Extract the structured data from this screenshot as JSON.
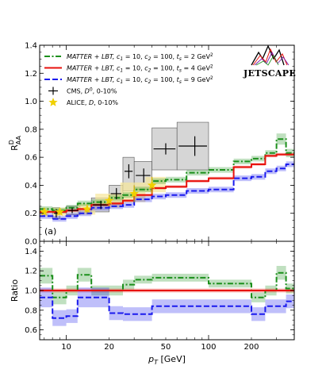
{
  "chart_data": [
    {
      "type": "line",
      "panel": "upper",
      "ylabel": "R^D_AA",
      "xscale": "log",
      "xlim": [
        6.5,
        400
      ],
      "ylim": [
        0.0,
        1.4
      ],
      "yticks": [
        0.0,
        0.2,
        0.4,
        0.6,
        0.8,
        1.0,
        1.2,
        1.4
      ],
      "ytick_labels": [
        "0.0",
        "0.2",
        "0.4",
        "0.6",
        "0.8",
        "1.0",
        "1.2",
        "1.4"
      ],
      "grid": false,
      "legend_position": "top-left",
      "annotation": "(a)",
      "logo_text": "JETSCAPE",
      "bin_edges": [
        6.5,
        8,
        10,
        12,
        15,
        20,
        25,
        30,
        40,
        50,
        70,
        100,
        150,
        200,
        250,
        300,
        350,
        400
      ],
      "series": [
        {
          "name": "MATTER + LBT, c1 = 10, c2 = 100, ts = 2 GeV^2",
          "label_parts": [
            "MATTER + LBT,",
            "c",
            "1",
            " = 10, ",
            "c",
            "2",
            " = 100, ",
            "t",
            "s",
            " = 2 GeV",
            "2"
          ],
          "color": "#1b8f1b",
          "style": "dashdot",
          "values": [
            0.23,
            0.22,
            0.24,
            0.27,
            0.28,
            0.31,
            0.33,
            0.37,
            0.43,
            0.44,
            0.49,
            0.51,
            0.57,
            0.59,
            0.63,
            0.73,
            0.63
          ],
          "band": [
            0.02,
            0.02,
            0.02,
            0.02,
            0.02,
            0.02,
            0.02,
            0.02,
            0.02,
            0.02,
            0.02,
            0.02,
            0.02,
            0.02,
            0.02,
            0.04,
            0.03
          ]
        },
        {
          "name": "MATTER + LBT, c1 = 10, c2 = 100, ts = 4 GeV^2",
          "label_parts": [
            "MATTER + LBT,",
            "c",
            "1",
            " = 10, ",
            "c",
            "2",
            " = 100, ",
            "t",
            "s",
            " = 4 GeV",
            "2"
          ],
          "color": "#e8120c",
          "style": "solid",
          "values": [
            0.21,
            0.21,
            0.22,
            0.23,
            0.26,
            0.27,
            0.29,
            0.33,
            0.38,
            0.39,
            0.43,
            0.45,
            0.53,
            0.55,
            0.61,
            0.62,
            0.62
          ],
          "band": [
            0.01,
            0.01,
            0.01,
            0.01,
            0.01,
            0.01,
            0.01,
            0.01,
            0.01,
            0.01,
            0.01,
            0.01,
            0.01,
            0.01,
            0.01,
            0.01,
            0.01
          ]
        },
        {
          "name": "MATTER + LBT, c1 = 10, c2 = 100, ts = 9 GeV^2",
          "label_parts": [
            "MATTER + LBT,",
            "c",
            "1",
            " = 10, ",
            "c",
            "2",
            " = 100, ",
            "t",
            "s",
            " = 9 GeV",
            "2"
          ],
          "color": "#1a1aee",
          "style": "dashed",
          "values": [
            0.18,
            0.16,
            0.18,
            0.2,
            0.24,
            0.25,
            0.26,
            0.3,
            0.32,
            0.33,
            0.36,
            0.37,
            0.45,
            0.46,
            0.5,
            0.52,
            0.55
          ],
          "band": [
            0.02,
            0.02,
            0.02,
            0.02,
            0.02,
            0.02,
            0.02,
            0.02,
            0.02,
            0.02,
            0.02,
            0.02,
            0.02,
            0.02,
            0.02,
            0.02,
            0.02
          ]
        }
      ],
      "experiments": [
        {
          "name": "CMS, D0, 0-10%",
          "label_parts": [
            "CMS, ",
            "D",
            "0",
            ", 0-10%"
          ],
          "color": "#000000",
          "box_color": "#c8c8c8",
          "marker": "cross",
          "points": [
            {
              "x": 8.5,
              "y": 0.2,
              "xlo": 8,
              "xhi": 9,
              "err": 0.03,
              "syslo": 0.16,
              "syshi": 0.24
            },
            {
              "x": 11,
              "y": 0.22,
              "xlo": 10,
              "xhi": 12.5,
              "err": 0.02,
              "syslo": 0.19,
              "syshi": 0.25
            },
            {
              "x": 17.5,
              "y": 0.26,
              "xlo": 15,
              "xhi": 20,
              "err": 0.03,
              "syslo": 0.21,
              "syshi": 0.31
            },
            {
              "x": 22.5,
              "y": 0.34,
              "xlo": 20,
              "xhi": 25,
              "err": 0.04,
              "syslo": 0.28,
              "syshi": 0.4
            },
            {
              "x": 27.5,
              "y": 0.5,
              "xlo": 25,
              "xhi": 30,
              "err": 0.05,
              "syslo": 0.36,
              "syshi": 0.6
            },
            {
              "x": 35,
              "y": 0.47,
              "xlo": 30,
              "xhi": 40,
              "err": 0.05,
              "syslo": 0.37,
              "syshi": 0.57
            },
            {
              "x": 50,
              "y": 0.66,
              "xlo": 40,
              "xhi": 60,
              "err": 0.04,
              "syslo": 0.51,
              "syshi": 0.81
            },
            {
              "x": 80,
              "y": 0.68,
              "xlo": 60,
              "xhi": 100,
              "err": 0.07,
              "syslo": 0.51,
              "syshi": 0.85
            }
          ]
        },
        {
          "name": "ALICE, D, 0-10%",
          "label_parts": [
            "ALICE, ",
            "D",
            ", 0-10%"
          ],
          "color": "#f0d000",
          "box_color": "#f7e79a",
          "marker": "star",
          "points": [
            {
              "x": 7.0,
              "y": 0.21,
              "xlo": 6.5,
              "xhi": 7.5,
              "err": 0.02,
              "syslo": 0.18,
              "syshi": 0.24
            },
            {
              "x": 9.0,
              "y": 0.21,
              "xlo": 8.0,
              "xhi": 10,
              "err": 0.02,
              "syslo": 0.18,
              "syshi": 0.24
            },
            {
              "x": 14,
              "y": 0.23,
              "xlo": 12,
              "xhi": 16,
              "err": 0.03,
              "syslo": 0.19,
              "syshi": 0.27
            },
            {
              "x": 20,
              "y": 0.29,
              "xlo": 16,
              "xhi": 24,
              "err": 0.04,
              "syslo": 0.24,
              "syshi": 0.34
            },
            {
              "x": 30,
              "y": 0.34,
              "xlo": 24,
              "xhi": 36,
              "err": 0.06,
              "syslo": 0.28,
              "syshi": 0.42
            },
            {
              "x": 40,
              "y": 0.4,
              "xlo": 36,
              "xhi": 50,
              "err": 0.06,
              "syslo": 0.35,
              "syshi": 0.46
            }
          ]
        }
      ]
    },
    {
      "type": "line",
      "panel": "lower",
      "ylabel": "Ratio",
      "xlabel": "pT [GeV]",
      "xlabel_parts": [
        "p",
        "T",
        " [GeV]"
      ],
      "xscale": "log",
      "xlim": [
        6.5,
        400
      ],
      "ylim": [
        0.5,
        1.5
      ],
      "yticks": [
        0.6,
        0.8,
        1.0,
        1.2,
        1.4
      ],
      "ytick_labels": [
        "0.6",
        "0.8",
        "1.0",
        "1.2",
        "1.4"
      ],
      "xticks": [
        10,
        20,
        50,
        100,
        200
      ],
      "xtick_labels": [
        "10",
        "20",
        "50",
        "100",
        "200"
      ],
      "reference_line": 1.0,
      "bin_edges": [
        6.5,
        8,
        10,
        12,
        15,
        20,
        25,
        30,
        40,
        50,
        70,
        100,
        150,
        200,
        250,
        300,
        350,
        400
      ],
      "series": [
        {
          "name": "ts = 2 GeV^2 / ts = 4 GeV^2",
          "color": "#1b8f1b",
          "style": "dashdot",
          "values": [
            1.15,
            0.93,
            1.0,
            1.16,
            1.0,
            1.0,
            1.06,
            1.11,
            1.13,
            1.13,
            1.13,
            1.07,
            1.07,
            0.93,
            1.0,
            1.18,
            1.02
          ],
          "band": [
            0.08,
            0.07,
            0.05,
            0.07,
            0.05,
            0.05,
            0.05,
            0.04,
            0.04,
            0.04,
            0.04,
            0.04,
            0.04,
            0.05,
            0.05,
            0.07,
            0.05
          ]
        },
        {
          "name": "ts = 4 GeV^2 / ts = 4 GeV^2",
          "color": "#e8120c",
          "style": "solid",
          "values": [
            1.0,
            1.0,
            1.0,
            1.0,
            1.0,
            1.0,
            1.0,
            1.0,
            1.0,
            1.0,
            1.0,
            1.0,
            1.0,
            1.0,
            1.0,
            1.0,
            1.0
          ],
          "band": [
            0.02,
            0.02,
            0.02,
            0.02,
            0.02,
            0.02,
            0.02,
            0.02,
            0.02,
            0.02,
            0.02,
            0.02,
            0.02,
            0.02,
            0.02,
            0.02,
            0.02
          ]
        },
        {
          "name": "ts = 9 GeV^2 / ts = 4 GeV^2",
          "color": "#1a1aee",
          "style": "dashed",
          "values": [
            0.93,
            0.72,
            0.74,
            0.93,
            0.93,
            0.77,
            0.76,
            0.76,
            0.84,
            0.84,
            0.84,
            0.84,
            0.84,
            0.76,
            0.84,
            0.84,
            0.89
          ],
          "band": [
            0.1,
            0.08,
            0.07,
            0.1,
            0.1,
            0.07,
            0.07,
            0.07,
            0.07,
            0.07,
            0.07,
            0.07,
            0.07,
            0.07,
            0.07,
            0.07,
            0.07
          ]
        }
      ]
    }
  ]
}
